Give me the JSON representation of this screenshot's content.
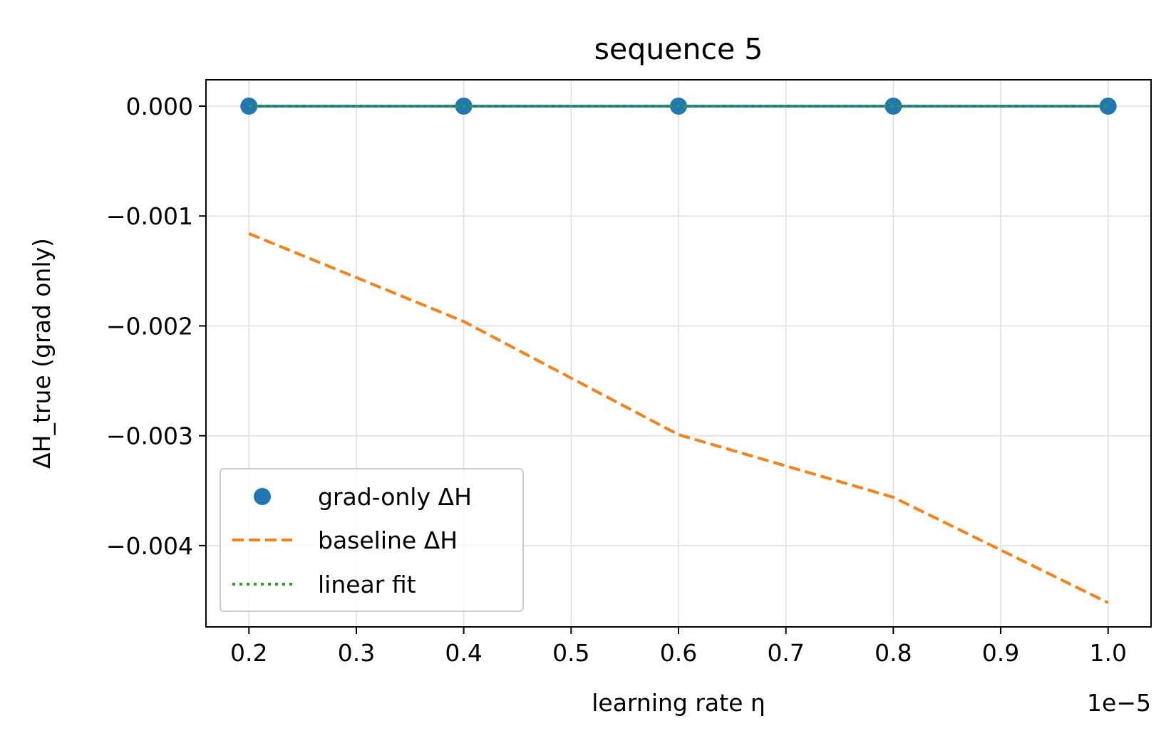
{
  "chart_data": {
    "type": "line",
    "title": "sequence 5",
    "xlabel": "learning rate η",
    "ylabel": "ΔH_true (grad only)",
    "x_offset_text": "1e−5",
    "x": [
      2e-06,
      4e-06,
      6e-06,
      8e-06,
      1e-05
    ],
    "xlim": [
      1.6e-06,
      1.04e-05
    ],
    "ylim": [
      -0.00474,
      0.00024
    ],
    "x_ticks": [
      2e-06,
      3e-06,
      4e-06,
      5e-06,
      6e-06,
      7e-06,
      8e-06,
      9e-06,
      1e-05
    ],
    "x_tick_labels": [
      "0.2",
      "0.3",
      "0.4",
      "0.5",
      "0.6",
      "0.7",
      "0.8",
      "0.9",
      "1.0"
    ],
    "y_ticks": [
      0,
      -0.001,
      -0.002,
      -0.003,
      -0.004
    ],
    "y_tick_labels": [
      "0.000",
      "−0.001",
      "−0.002",
      "−0.003",
      "−0.004"
    ],
    "grid": true,
    "legend_position": "lower-left",
    "series": [
      {
        "name": "grad-only ΔH",
        "kind": "scatter",
        "color": "#1f77b4",
        "values": [
          0,
          0,
          0,
          0,
          0
        ]
      },
      {
        "name": "baseline ΔH",
        "kind": "line",
        "style": "dashed",
        "color": "#ff7f0e",
        "values": [
          -0.00116,
          -0.00196,
          -0.00299,
          -0.00356,
          -0.00452
        ]
      },
      {
        "name": "linear fit",
        "kind": "line",
        "style": "dotted",
        "color": "#2ca02c",
        "values": [
          0,
          0,
          0,
          0,
          0
        ]
      }
    ]
  }
}
